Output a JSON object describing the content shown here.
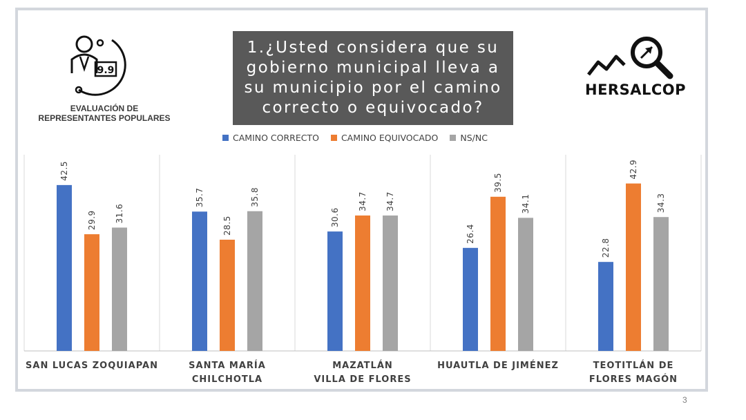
{
  "header": {
    "question": "1.¿Usted considera que su gobierno municipal lleva a su municipio por el camino correcto o equivocado?"
  },
  "left_logo": {
    "score": "9.9",
    "caption_line1": "EVALUACIÓN DE",
    "caption_line2": "REPRESENTANTES POPULARES"
  },
  "right_logo": {
    "brand": "HERSALCOP"
  },
  "page_number": "3",
  "colors": {
    "correcto": "#4472C4",
    "equivocado": "#ED7D31",
    "nsnc": "#A5A5A5"
  },
  "chart_data": {
    "type": "bar",
    "title": "1.¿Usted considera que su gobierno municipal lleva a su municipio por el camino correcto o equivocado?",
    "categories": [
      [
        "SAN LUCAS ZOQUIAPAN"
      ],
      [
        "SANTA MARÍA",
        "CHILCHOTLA"
      ],
      [
        "MAZATLÁN",
        "VILLA DE FLORES"
      ],
      [
        "HUAUTLA DE JIMÉNEZ"
      ],
      [
        "TEOTITLÁN DE",
        "FLORES MAGÓN"
      ]
    ],
    "series": [
      {
        "name": "CAMINO CORRECTO",
        "values": [
          42.5,
          35.7,
          30.6,
          26.4,
          22.8
        ]
      },
      {
        "name": "CAMINO EQUIVOCADO",
        "values": [
          29.9,
          28.5,
          34.7,
          39.5,
          42.9
        ]
      },
      {
        "name": "NS/NC",
        "values": [
          31.6,
          35.8,
          34.7,
          34.1,
          34.3
        ]
      }
    ],
    "xlabel": "",
    "ylabel": "",
    "ylim": [
      0,
      45
    ],
    "legend_position": "top-center",
    "grid": false
  }
}
